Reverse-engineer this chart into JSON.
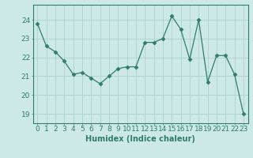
{
  "x": [
    0,
    1,
    2,
    3,
    4,
    5,
    6,
    7,
    8,
    9,
    10,
    11,
    12,
    13,
    14,
    15,
    16,
    17,
    18,
    19,
    20,
    21,
    22,
    23
  ],
  "y": [
    23.8,
    22.6,
    22.3,
    21.8,
    21.1,
    21.2,
    20.9,
    20.6,
    21.0,
    21.4,
    21.5,
    21.5,
    22.8,
    22.8,
    23.0,
    24.2,
    23.5,
    21.9,
    24.0,
    20.7,
    22.1,
    22.1,
    21.1,
    19.0
  ],
  "line_color": "#2e7d6e",
  "marker": "D",
  "markersize": 2.5,
  "bg_color": "#cce9e7",
  "grid_color": "#b0d5d3",
  "axis_color": "#2e7d6e",
  "tick_color": "#2e7d6e",
  "xlabel": "Humidex (Indice chaleur)",
  "ylim": [
    18.5,
    24.8
  ],
  "xlim": [
    -0.5,
    23.5
  ],
  "yticks": [
    19,
    20,
    21,
    22,
    23,
    24
  ],
  "xticks": [
    0,
    1,
    2,
    3,
    4,
    5,
    6,
    7,
    8,
    9,
    10,
    11,
    12,
    13,
    14,
    15,
    16,
    17,
    18,
    19,
    20,
    21,
    22,
    23
  ],
  "xtick_labels": [
    "0",
    "1",
    "2",
    "3",
    "4",
    "5",
    "6",
    "7",
    "8",
    "9",
    "10",
    "11",
    "12",
    "13",
    "14",
    "15",
    "16",
    "17",
    "18",
    "19",
    "20",
    "21",
    "22",
    "23"
  ],
  "fontsize_xlabel": 7,
  "fontsize_ticks": 6.5
}
